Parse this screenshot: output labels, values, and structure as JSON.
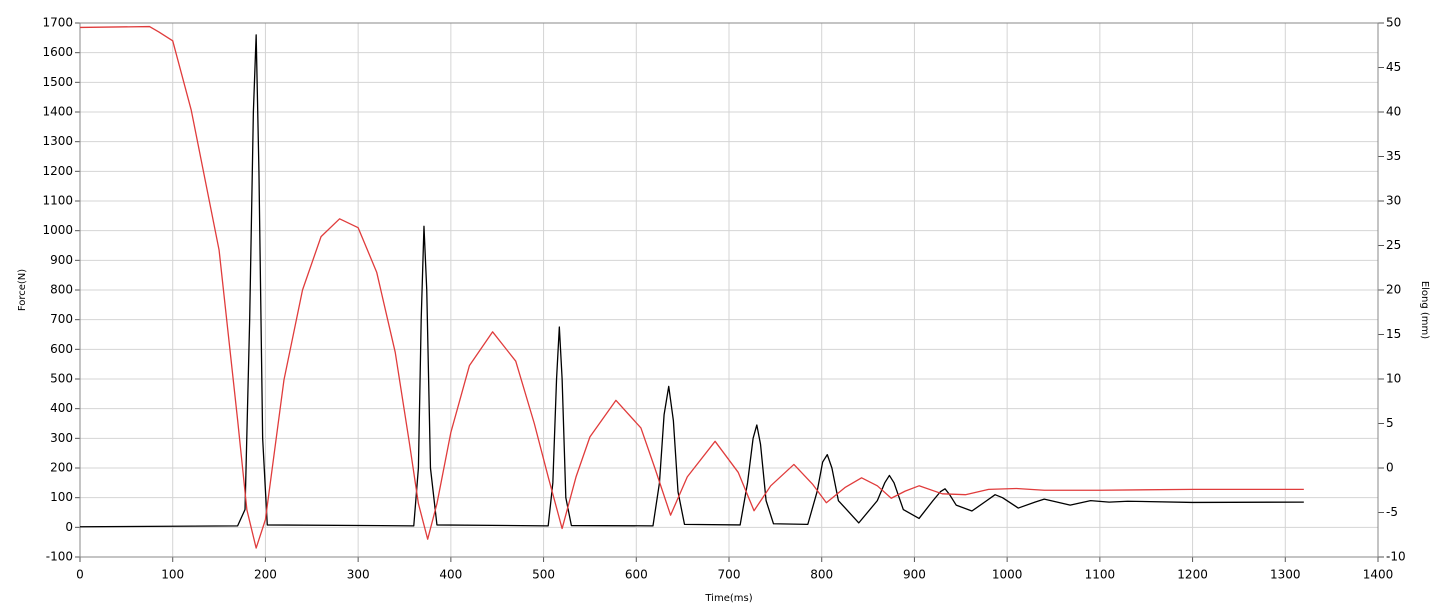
{
  "chart_data": {
    "type": "line",
    "xlabel": "Time(ms)",
    "ylabel": "Force(N)",
    "y2label": "Elong (mm)",
    "xlim": [
      0,
      1400
    ],
    "xticks": [
      0,
      100,
      200,
      300,
      400,
      500,
      600,
      700,
      800,
      900,
      1000,
      1100,
      1200,
      1300,
      1400
    ],
    "ylim": [
      -100,
      1700
    ],
    "yticks": [
      -100,
      0,
      100,
      200,
      300,
      400,
      500,
      600,
      700,
      800,
      900,
      1000,
      1100,
      1200,
      1300,
      1400,
      1500,
      1600,
      1700
    ],
    "y2lim": [
      -10,
      50
    ],
    "y2ticks": [
      -10,
      -5,
      0,
      5,
      10,
      15,
      20,
      25,
      30,
      35,
      40,
      45,
      50
    ],
    "grid": true,
    "series": [
      {
        "color": "#000000",
        "x": [
          0,
          170,
          178,
          183,
          187,
          190,
          193,
          197,
          202,
          360,
          365,
          368,
          371,
          374,
          378,
          385,
          505,
          510,
          514,
          517,
          520,
          524,
          530,
          618,
          625,
          630,
          635,
          640,
          645,
          652,
          712,
          720,
          726,
          730,
          734,
          740,
          748,
          785,
          795,
          801,
          806,
          811,
          818,
          840,
          860,
          868,
          873,
          878,
          888,
          905,
          920,
          928,
          933,
          938,
          945,
          962,
          978,
          987,
          995,
          1012,
          1030,
          1040,
          1050,
          1068,
          1090,
          1110,
          1130,
          1200,
          1320
        ],
        "values": [
          2,
          5,
          60,
          700,
          1400,
          1660,
          1200,
          300,
          8,
          5,
          200,
          700,
          1015,
          800,
          200,
          8,
          5,
          150,
          500,
          675,
          500,
          100,
          6,
          5,
          150,
          380,
          475,
          360,
          120,
          10,
          8,
          150,
          300,
          345,
          280,
          90,
          12,
          10,
          120,
          220,
          245,
          200,
          90,
          15,
          90,
          150,
          175,
          150,
          60,
          30,
          90,
          120,
          130,
          110,
          75,
          55,
          90,
          110,
          100,
          65,
          85,
          95,
          88,
          75,
          90,
          85,
          88,
          84,
          85
        ]
      },
      {
        "color": "#e03c3c",
        "axis": "y2",
        "x": [
          0,
          75,
          85,
          100,
          120,
          150,
          170,
          180,
          190,
          200,
          220,
          240,
          260,
          280,
          300,
          320,
          340,
          355,
          365,
          375,
          385,
          400,
          420,
          445,
          470,
          490,
          505,
          520,
          535,
          550,
          578,
          605,
          620,
          637,
          655,
          685,
          710,
          727,
          745,
          770,
          790,
          805,
          825,
          843,
          860,
          875,
          890,
          905,
          930,
          955,
          980,
          1010,
          1040,
          1100,
          1200,
          1320
        ],
        "values": [
          49.5,
          49.6,
          49,
          48,
          40.2,
          24.5,
          5.4,
          -4.7,
          -9,
          -5.8,
          9.9,
          20,
          26,
          28,
          27,
          22,
          13,
          3,
          -4,
          -8,
          -4,
          4,
          11.5,
          15.3,
          12,
          5,
          -1,
          -6.8,
          -1,
          3.5,
          7.6,
          4.5,
          0,
          -5.3,
          -1,
          3,
          -0.5,
          -4.8,
          -2,
          0.4,
          -1.8,
          -3.9,
          -2.2,
          -1.1,
          -2,
          -3.4,
          -2.6,
          -2.0,
          -2.9,
          -3.0,
          -2.4,
          -2.3,
          -2.5,
          -2.5,
          -2.4,
          -2.4
        ]
      }
    ]
  }
}
